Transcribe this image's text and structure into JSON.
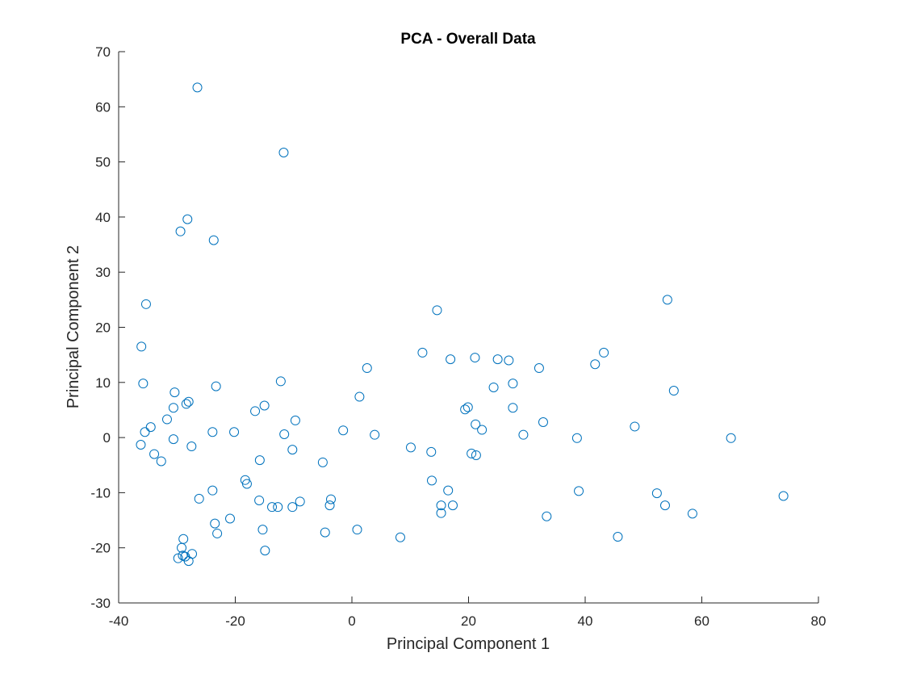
{
  "chart_data": {
    "type": "scatter",
    "title": "PCA - Overall Data",
    "xlabel": "Principal Component 1",
    "ylabel": "Principal Component 2",
    "xlim": [
      -40,
      80
    ],
    "ylim": [
      -30,
      70
    ],
    "xticks": [
      -40,
      -20,
      0,
      20,
      40,
      60,
      80
    ],
    "yticks": [
      -30,
      -20,
      -10,
      0,
      10,
      20,
      30,
      40,
      50,
      60,
      70
    ],
    "grid": false,
    "marker": "circle",
    "color": "#0072BD",
    "points": [
      [
        -26.5,
        63.5
      ],
      [
        -11.7,
        51.7
      ],
      [
        -28.2,
        39.6
      ],
      [
        -29.4,
        37.4
      ],
      [
        -23.7,
        35.8
      ],
      [
        -35.3,
        24.2
      ],
      [
        -36.1,
        16.5
      ],
      [
        -35.8,
        9.8
      ],
      [
        -23.3,
        9.3
      ],
      [
        -12.2,
        10.2
      ],
      [
        -30.4,
        8.2
      ],
      [
        -28.0,
        6.5
      ],
      [
        -28.4,
        6.1
      ],
      [
        -30.6,
        5.4
      ],
      [
        -15.0,
        5.8
      ],
      [
        -16.6,
        4.8
      ],
      [
        -31.7,
        3.3
      ],
      [
        -9.7,
        3.1
      ],
      [
        -34.5,
        1.9
      ],
      [
        -35.5,
        1.0
      ],
      [
        -23.9,
        1.0
      ],
      [
        -20.2,
        1.0
      ],
      [
        -11.6,
        0.6
      ],
      [
        -30.6,
        -0.3
      ],
      [
        -36.2,
        -1.3
      ],
      [
        -27.5,
        -1.6
      ],
      [
        -10.2,
        -2.2
      ],
      [
        -33.9,
        -3.0
      ],
      [
        -32.7,
        -4.3
      ],
      [
        -15.8,
        -4.1
      ],
      [
        -18.3,
        -7.7
      ],
      [
        -18.0,
        -8.4
      ],
      [
        -23.9,
        -9.6
      ],
      [
        -26.2,
        -11.1
      ],
      [
        -15.9,
        -11.4
      ],
      [
        -13.7,
        -12.6
      ],
      [
        -12.7,
        -12.6
      ],
      [
        -10.2,
        -12.6
      ],
      [
        -8.9,
        -11.6
      ],
      [
        -20.9,
        -14.7
      ],
      [
        -23.5,
        -15.6
      ],
      [
        -15.3,
        -16.7
      ],
      [
        -23.1,
        -17.4
      ],
      [
        -28.9,
        -18.4
      ],
      [
        -29.2,
        -20.0
      ],
      [
        -27.4,
        -21.1
      ],
      [
        -29.0,
        -21.4
      ],
      [
        -28.6,
        -21.6
      ],
      [
        -29.8,
        -21.9
      ],
      [
        -28.0,
        -22.4
      ],
      [
        -14.9,
        -20.5
      ],
      [
        2.6,
        12.6
      ],
      [
        1.3,
        7.4
      ],
      [
        -1.5,
        1.3
      ],
      [
        3.9,
        0.5
      ],
      [
        -5.0,
        -4.5
      ],
      [
        -3.6,
        -11.2
      ],
      [
        -3.8,
        -12.3
      ],
      [
        -4.6,
        -17.2
      ],
      [
        0.9,
        -16.7
      ],
      [
        14.6,
        23.1
      ],
      [
        12.1,
        15.4
      ],
      [
        16.9,
        14.2
      ],
      [
        21.1,
        14.5
      ],
      [
        25.0,
        14.2
      ],
      [
        26.9,
        14.0
      ],
      [
        27.6,
        9.8
      ],
      [
        24.3,
        9.1
      ],
      [
        19.4,
        5.1
      ],
      [
        19.9,
        5.5
      ],
      [
        27.6,
        5.4
      ],
      [
        21.2,
        2.4
      ],
      [
        22.3,
        1.4
      ],
      [
        10.1,
        -1.8
      ],
      [
        13.6,
        -2.6
      ],
      [
        20.5,
        -2.9
      ],
      [
        21.3,
        -3.2
      ],
      [
        13.7,
        -7.8
      ],
      [
        16.5,
        -9.6
      ],
      [
        15.3,
        -12.3
      ],
      [
        17.3,
        -12.3
      ],
      [
        15.3,
        -13.7
      ],
      [
        8.3,
        -18.1
      ],
      [
        32.1,
        12.6
      ],
      [
        32.8,
        2.8
      ],
      [
        29.4,
        0.5
      ],
      [
        33.4,
        -14.3
      ],
      [
        38.6,
        -0.1
      ],
      [
        38.9,
        -9.7
      ],
      [
        43.2,
        15.4
      ],
      [
        41.7,
        13.3
      ],
      [
        54.1,
        25.0
      ],
      [
        55.2,
        8.5
      ],
      [
        48.5,
        2.0
      ],
      [
        52.3,
        -10.1
      ],
      [
        53.7,
        -12.3
      ],
      [
        58.4,
        -13.8
      ],
      [
        45.6,
        -18.0
      ],
      [
        65.0,
        -0.1
      ],
      [
        74.0,
        -10.6
      ]
    ]
  }
}
